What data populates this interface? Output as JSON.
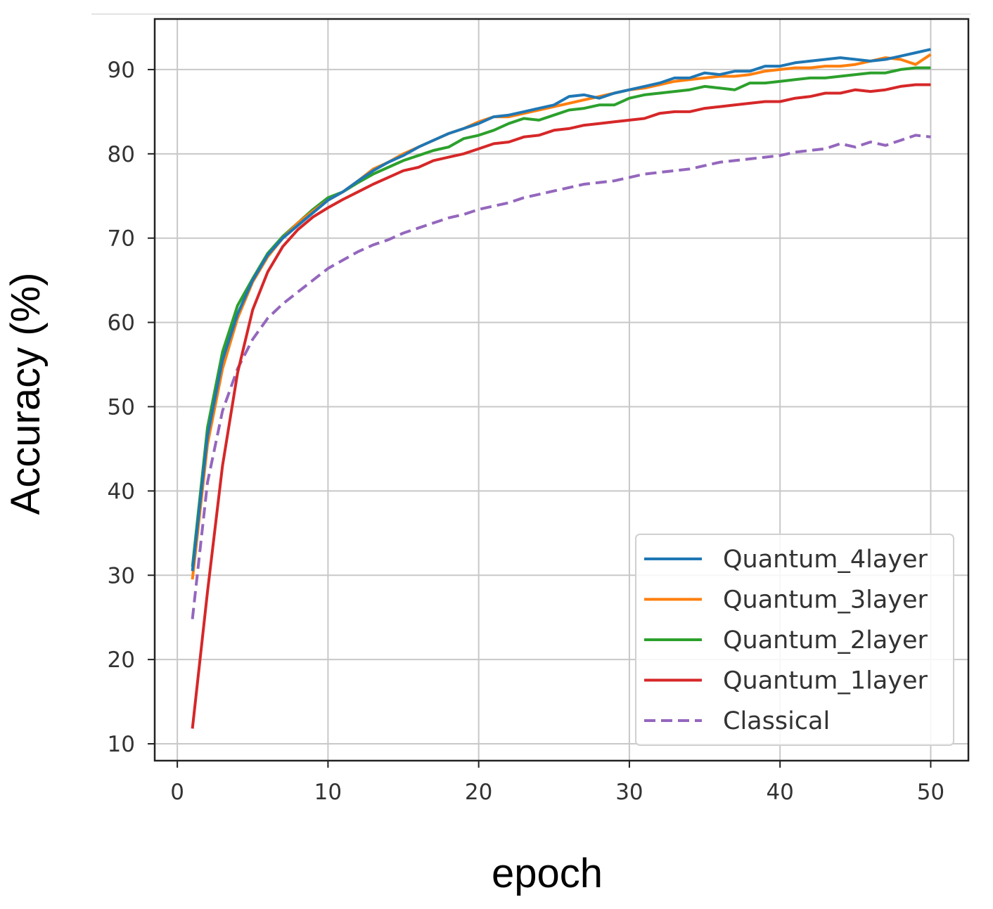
{
  "chart_data": {
    "type": "line",
    "title": "",
    "xlabel": "epoch",
    "ylabel": "Accuracy (%)",
    "xlim": [
      -1.5,
      52.5
    ],
    "ylim": [
      8,
      96
    ],
    "xticks": [
      0,
      10,
      20,
      30,
      40,
      50
    ],
    "yticks": [
      10,
      20,
      30,
      40,
      50,
      60,
      70,
      80,
      90
    ],
    "grid": true,
    "legend_position": "lower-right",
    "x": [
      1,
      2,
      3,
      4,
      5,
      6,
      7,
      8,
      9,
      10,
      11,
      12,
      13,
      14,
      15,
      16,
      17,
      18,
      19,
      20,
      21,
      22,
      23,
      24,
      25,
      26,
      27,
      28,
      29,
      30,
      31,
      32,
      33,
      34,
      35,
      36,
      37,
      38,
      39,
      40,
      41,
      42,
      43,
      44,
      45,
      46,
      47,
      48,
      49,
      50
    ],
    "series": [
      {
        "name": "Quantum_4layer",
        "color": "#1f77b4",
        "dashed": false,
        "values": [
          30.5,
          46.5,
          55.5,
          61,
          65,
          68,
          70,
          71.5,
          73,
          74.5,
          75.5,
          76.8,
          78,
          79,
          79.8,
          80.8,
          81.6,
          82.4,
          83,
          83.6,
          84.4,
          84.6,
          85,
          85.4,
          85.8,
          86.8,
          87,
          86.6,
          87.2,
          87.6,
          88,
          88.4,
          89,
          89,
          89.6,
          89.4,
          89.8,
          89.8,
          90.4,
          90.4,
          90.8,
          91,
          91.2,
          91.4,
          91.2,
          91,
          91.2,
          91.6,
          92,
          92.4
        ]
      },
      {
        "name": "Quantum_3layer",
        "color": "#ff7f0e",
        "dashed": false,
        "values": [
          29.5,
          45.5,
          54.5,
          60.5,
          64.8,
          67.8,
          70,
          71.8,
          73.2,
          74.5,
          75.5,
          76.8,
          78.2,
          79,
          80,
          80.8,
          81.6,
          82.4,
          83,
          83.8,
          84.4,
          84.4,
          84.8,
          85.2,
          85.6,
          86,
          86.4,
          86.8,
          87.2,
          87.6,
          87.8,
          88.2,
          88.6,
          88.8,
          89,
          89.2,
          89.2,
          89.4,
          89.8,
          90,
          90.2,
          90.2,
          90.4,
          90.4,
          90.6,
          91,
          91.4,
          91.2,
          90.6,
          91.8
        ]
      },
      {
        "name": "Quantum_2layer",
        "color": "#2ca02c",
        "dashed": false,
        "values": [
          31,
          47.5,
          56.5,
          62,
          65.2,
          68.2,
          70.2,
          71.8,
          73.4,
          74.8,
          75.5,
          76.6,
          77.6,
          78.4,
          79.2,
          79.8,
          80.4,
          80.8,
          81.8,
          82.2,
          82.8,
          83.6,
          84.2,
          84,
          84.6,
          85.2,
          85.4,
          85.8,
          85.8,
          86.6,
          87,
          87.2,
          87.4,
          87.6,
          88,
          87.8,
          87.6,
          88.4,
          88.4,
          88.6,
          88.8,
          89,
          89,
          89.2,
          89.4,
          89.6,
          89.6,
          90,
          90.2,
          90.2
        ]
      },
      {
        "name": "Quantum_1layer",
        "color": "#d62728",
        "dashed": false,
        "values": [
          11.8,
          28,
          43,
          54,
          61.5,
          66,
          69,
          71,
          72.5,
          73.6,
          74.6,
          75.5,
          76.4,
          77.2,
          78,
          78.4,
          79.2,
          79.6,
          80,
          80.6,
          81.2,
          81.4,
          82,
          82.2,
          82.8,
          83,
          83.4,
          83.6,
          83.8,
          84,
          84.2,
          84.8,
          85,
          85,
          85.4,
          85.6,
          85.8,
          86,
          86.2,
          86.2,
          86.6,
          86.8,
          87.2,
          87.2,
          87.6,
          87.4,
          87.6,
          88,
          88.2,
          88.2
        ]
      },
      {
        "name": "Classical",
        "color": "#9467bd",
        "dashed": true,
        "values": [
          24.8,
          41,
          49.5,
          54.5,
          58,
          60.5,
          62.2,
          63.6,
          65,
          66.4,
          67.4,
          68.4,
          69.2,
          69.8,
          70.6,
          71.2,
          71.8,
          72.4,
          72.8,
          73.4,
          73.8,
          74.2,
          74.8,
          75.2,
          75.6,
          76,
          76.4,
          76.6,
          76.8,
          77.2,
          77.6,
          77.8,
          78,
          78.2,
          78.6,
          79,
          79.2,
          79.4,
          79.6,
          79.8,
          80.2,
          80.4,
          80.6,
          81.2,
          80.8,
          81.4,
          81,
          81.6,
          82.2,
          82
        ]
      }
    ]
  }
}
